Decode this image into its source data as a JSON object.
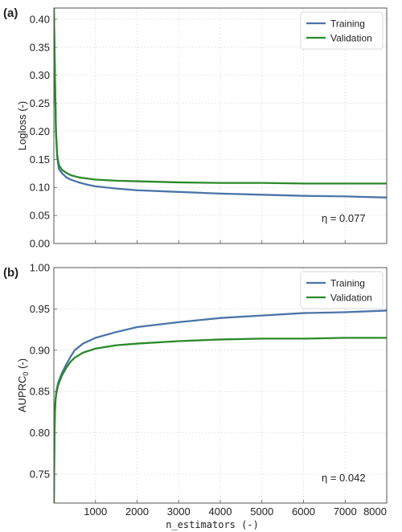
{
  "colors": {
    "training": "#4a74a8",
    "validation": "#2a8a2a",
    "grid": "#e2e2e2",
    "frame": "#555555"
  },
  "chart_data": [
    {
      "type": "line",
      "panel_label": "(a)",
      "ylabel": "Logloss (-)",
      "xlim": [
        0,
        8000
      ],
      "ylim": [
        0,
        0.42
      ],
      "yticks": [
        "0.00",
        "0.05",
        "0.10",
        "0.15",
        "0.20",
        "0.25",
        "0.30",
        "0.35",
        "0.40"
      ],
      "ytick_values": [
        0,
        0.05,
        0.1,
        0.15,
        0.2,
        0.25,
        0.3,
        0.35,
        0.4
      ],
      "grid": true,
      "legend": "top-right",
      "annotation": "η = 0.077",
      "series": [
        {
          "name": "Training",
          "x": [
            0,
            25,
            50,
            80,
            120,
            200,
            300,
            400,
            600,
            800,
            1000,
            1500,
            2000,
            3000,
            4000,
            5000,
            6000,
            7000,
            8000
          ],
          "y": [
            0.42,
            0.3,
            0.2,
            0.155,
            0.133,
            0.125,
            0.118,
            0.114,
            0.109,
            0.105,
            0.102,
            0.098,
            0.095,
            0.092,
            0.089,
            0.087,
            0.085,
            0.084,
            0.082
          ]
        },
        {
          "name": "Validation",
          "x": [
            0,
            25,
            50,
            80,
            120,
            200,
            300,
            400,
            600,
            800,
            1000,
            1500,
            2000,
            3000,
            4000,
            5000,
            6000,
            7000,
            8000
          ],
          "y": [
            0.42,
            0.3,
            0.2,
            0.158,
            0.14,
            0.131,
            0.126,
            0.122,
            0.118,
            0.116,
            0.114,
            0.112,
            0.111,
            0.109,
            0.108,
            0.108,
            0.107,
            0.107,
            0.107
          ]
        }
      ]
    },
    {
      "type": "line",
      "panel_label": "(b)",
      "ylabel": "AUPRC",
      "ylabel_sub": "0",
      "ylabel_unit": " (-)",
      "xlabel": "n_estimators (-)",
      "xlim": [
        0,
        8000
      ],
      "ylim": [
        0.715,
        1.0
      ],
      "yticks": [
        "0.75",
        "0.80",
        "0.85",
        "0.90",
        "0.95",
        "1.00"
      ],
      "ytick_values": [
        0.75,
        0.8,
        0.85,
        0.9,
        0.95,
        1.0
      ],
      "xticks": [
        "1000",
        "2000",
        "3000",
        "4000",
        "5000",
        "6000",
        "7000",
        "8000"
      ],
      "xtick_values": [
        1000,
        2000,
        3000,
        4000,
        5000,
        6000,
        7000,
        8000
      ],
      "grid": true,
      "legend": "top-right",
      "annotation": "η = 0.042",
      "series": [
        {
          "name": "Training",
          "x": [
            0,
            8,
            15,
            25,
            40,
            60,
            100,
            150,
            200,
            300,
            400,
            500,
            700,
            1000,
            1500,
            2000,
            3000,
            4000,
            5000,
            6000,
            7000,
            8000
          ],
          "y": [
            0.715,
            0.76,
            0.8,
            0.825,
            0.84,
            0.85,
            0.86,
            0.867,
            0.873,
            0.883,
            0.892,
            0.9,
            0.908,
            0.915,
            0.922,
            0.928,
            0.934,
            0.939,
            0.942,
            0.945,
            0.946,
            0.948
          ]
        },
        {
          "name": "Validation",
          "x": [
            0,
            8,
            15,
            25,
            40,
            60,
            100,
            150,
            200,
            300,
            400,
            500,
            700,
            1000,
            1500,
            2000,
            3000,
            4000,
            5000,
            6000,
            7000,
            8000
          ],
          "y": [
            0.715,
            0.76,
            0.8,
            0.825,
            0.84,
            0.848,
            0.857,
            0.864,
            0.87,
            0.879,
            0.886,
            0.891,
            0.897,
            0.902,
            0.906,
            0.908,
            0.911,
            0.913,
            0.914,
            0.914,
            0.915,
            0.915
          ]
        }
      ]
    }
  ]
}
